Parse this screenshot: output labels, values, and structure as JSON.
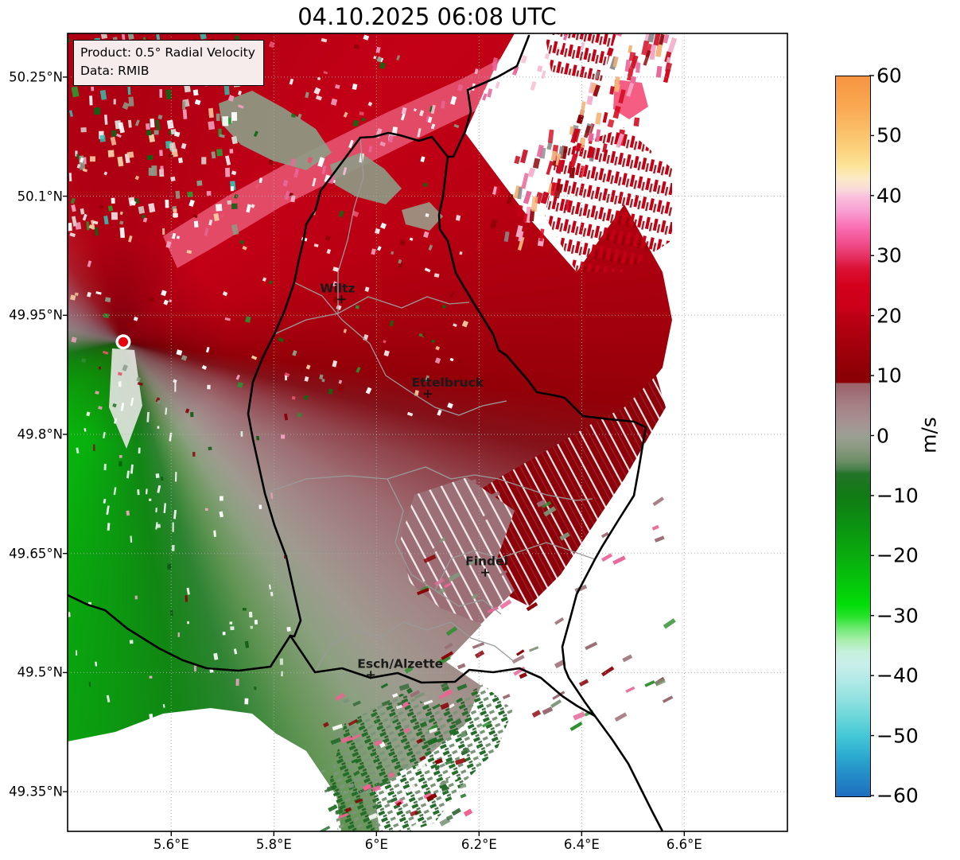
{
  "figure": {
    "title": "04.10.2025 06:08 UTC",
    "product_box": {
      "product_line": "Product: 0.5° Radial Velocity",
      "data_line": "Data: RMIB"
    }
  },
  "chart_data": {
    "type": "heatmap",
    "subtype": "doppler-radar-radial-velocity-map",
    "title": "04.10.2025 06:08 UTC",
    "product": "0.5° Radial Velocity",
    "data_source": "RMIB",
    "units": "m/s",
    "extent": {
      "lon_min": 5.398,
      "lon_max": 6.801,
      "lat_min": 49.3,
      "lat_max": 50.305
    },
    "x_axis": {
      "ticks": [
        {
          "value": 5.6,
          "label": "5.6°E"
        },
        {
          "value": 5.8,
          "label": "5.8°E"
        },
        {
          "value": 6.0,
          "label": "6°E"
        },
        {
          "value": 6.2,
          "label": "6.2°E"
        },
        {
          "value": 6.4,
          "label": "6.4°E"
        },
        {
          "value": 6.6,
          "label": "6.6°E"
        }
      ]
    },
    "y_axis": {
      "ticks": [
        {
          "value": 49.35,
          "label": "49.35°N"
        },
        {
          "value": 49.5,
          "label": "49.5°N"
        },
        {
          "value": 49.65,
          "label": "49.65°N"
        },
        {
          "value": 49.8,
          "label": "49.8°N"
        },
        {
          "value": 49.95,
          "label": "49.95°N"
        },
        {
          "value": 50.1,
          "label": "50.1°N"
        },
        {
          "value": 50.25,
          "label": "50.25°N"
        }
      ]
    },
    "grid": {
      "style": "dotted",
      "color": "#aaaaaa"
    },
    "colorbar": {
      "label": "m/s",
      "min": -60,
      "max": 60,
      "tick_values": [
        60,
        50,
        40,
        30,
        20,
        10,
        0,
        -10,
        -20,
        -30,
        -40,
        -50,
        -60
      ],
      "tick_labels": [
        "60",
        "50",
        "40",
        "30",
        "20",
        "10",
        "0",
        "−10",
        "−20",
        "−30",
        "−40",
        "−50",
        "−60"
      ],
      "stops": [
        [
          60,
          "#f89440"
        ],
        [
          55,
          "#f9a851"
        ],
        [
          50,
          "#fbc46e"
        ],
        [
          47.5,
          "#fcd480"
        ],
        [
          45,
          "#fce49a"
        ],
        [
          43,
          "#fbeac6"
        ],
        [
          41,
          "#f9d8da"
        ],
        [
          40,
          "#f9c0dc"
        ],
        [
          37.5,
          "#f89fd2"
        ],
        [
          35,
          "#f871b4"
        ],
        [
          32.5,
          "#f25192"
        ],
        [
          30,
          "#e63163"
        ],
        [
          28,
          "#dc1134"
        ],
        [
          25,
          "#d4001c"
        ],
        [
          21,
          "#c90017"
        ],
        [
          20,
          "#bc0013"
        ],
        [
          15,
          "#a3000c"
        ],
        [
          10.5,
          "#8b0004"
        ],
        [
          9,
          "#8b0004"
        ],
        [
          8.8,
          "#9b6168"
        ],
        [
          6,
          "#a37a80"
        ],
        [
          3,
          "#a78e90"
        ],
        [
          0.8,
          "#a09b94"
        ],
        [
          0,
          "#9aa091"
        ],
        [
          -2,
          "#8a9a80"
        ],
        [
          -4,
          "#6f8f68"
        ],
        [
          -5.5,
          "#47804a"
        ],
        [
          -6.2,
          "#237427"
        ],
        [
          -10,
          "#107b14"
        ],
        [
          -15,
          "#0c9311"
        ],
        [
          -20,
          "#09ad0e"
        ],
        [
          -25,
          "#05c90b"
        ],
        [
          -28,
          "#02dd07"
        ],
        [
          -30,
          "#27e22c"
        ],
        [
          -32,
          "#6fe973"
        ],
        [
          -34,
          "#a9efad"
        ],
        [
          -36,
          "#c6f0dc"
        ],
        [
          -38,
          "#c9eeea"
        ],
        [
          -41,
          "#aee9e6"
        ],
        [
          -44,
          "#8fe0e0"
        ],
        [
          -47,
          "#68d6da"
        ],
        [
          -50,
          "#44c7d6"
        ],
        [
          -53,
          "#2dadd0"
        ],
        [
          -56,
          "#2590c9"
        ],
        [
          -60,
          "#1f6fc0"
        ]
      ]
    },
    "radar_site": {
      "lon": 5.5065,
      "lat": 49.9165,
      "marker_color": "#e8000a"
    },
    "cities": [
      {
        "name": "Wiltz",
        "lon": 5.932,
        "lat": 49.97,
        "label_dx": -5
      },
      {
        "name": "Ettelbruck",
        "lon": 6.1,
        "lat": 49.851,
        "label_dx": 25
      },
      {
        "name": "Findel",
        "lon": 6.212,
        "lat": 49.626,
        "label_dx": 2
      },
      {
        "name": "Esch/Alzette",
        "lon": 5.989,
        "lat": 49.497,
        "label_dx": 37
      }
    ],
    "velocity_field_regions": [
      {
        "region": "NE half around radar (N Luxembourg / Belgium / Germany)",
        "value_mps": "+10 to +28",
        "color": "red to dark red"
      },
      {
        "region": "NNE outer band",
        "value_mps": "+28 to +40",
        "color": "crimson / pink"
      },
      {
        "region": "SW sector from radar",
        "value_mps": "-8 to -28",
        "color": "green"
      },
      {
        "region": "zero-isodop band NW to SE through radar site",
        "value_mps": "-5 to +8",
        "color": "gray / mauve"
      },
      {
        "region": "far east and southeast quadrant",
        "value_mps": "no data",
        "color": "white with sparse radial streaks"
      }
    ]
  }
}
